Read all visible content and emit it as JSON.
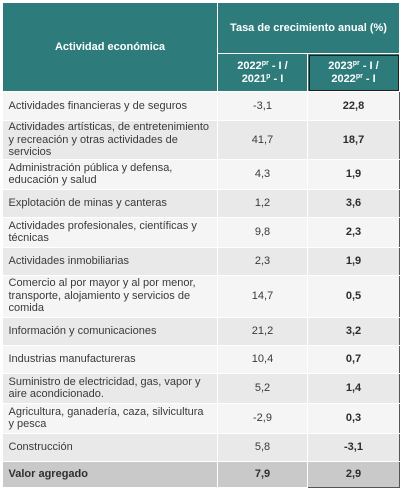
{
  "header": {
    "activity_label": "Actividad económica",
    "rate_label": "Tasa de crecimiento anual (%)",
    "period1": {
      "line1_pre": "2022",
      "line1_sup": "pr",
      "line1_post": " - I /",
      "line2_pre": "2021",
      "line2_sup": "p",
      "line2_post": " - I"
    },
    "period2": {
      "line1_pre": "2023",
      "line1_sup": "pr",
      "line1_post": " - I /",
      "line2_pre": "2022",
      "line2_sup": "pr",
      "line2_post": " - I"
    }
  },
  "rows": [
    {
      "activity": "Actividades financieras y de seguros",
      "v1": "-3,1",
      "v2": "22,8"
    },
    {
      "activity": "Actividades artísticas, de entretenimiento y recreación y otras actividades de servicios",
      "v1": "41,7",
      "v2": "18,7"
    },
    {
      "activity": "Administración pública y defensa, educación y salud",
      "v1": "4,3",
      "v2": "1,9"
    },
    {
      "activity": "Explotación de minas y canteras",
      "v1": "1,2",
      "v2": "3,6"
    },
    {
      "activity": "Actividades profesionales, científicas y técnicas",
      "v1": "9,8",
      "v2": "2,3"
    },
    {
      "activity": "Actividades inmobiliarias",
      "v1": "2,3",
      "v2": "1,9"
    },
    {
      "activity": "Comercio al por mayor y al por menor, transporte, alojamiento y servicios de comida",
      "v1": "14,7",
      "v2": "0,5"
    },
    {
      "activity": "Información y comunicaciones",
      "v1": "21,2",
      "v2": "3,2"
    },
    {
      "activity": "Industrias manufactureras",
      "v1": "10,4",
      "v2": "0,7"
    },
    {
      "activity": "Suministro de electricidad, gas, vapor y aire acondicionado.",
      "v1": "5,2",
      "v2": "1,4"
    },
    {
      "activity": "Agricultura, ganadería, caza, silvicultura y pesca",
      "v1": "-2,9",
      "v2": "0,3"
    },
    {
      "activity": "Construcción",
      "v1": "5,8",
      "v2": "-3,1"
    }
  ],
  "total": {
    "activity": "Valor agregado",
    "v1": "7,9",
    "v2": "2,9"
  }
}
